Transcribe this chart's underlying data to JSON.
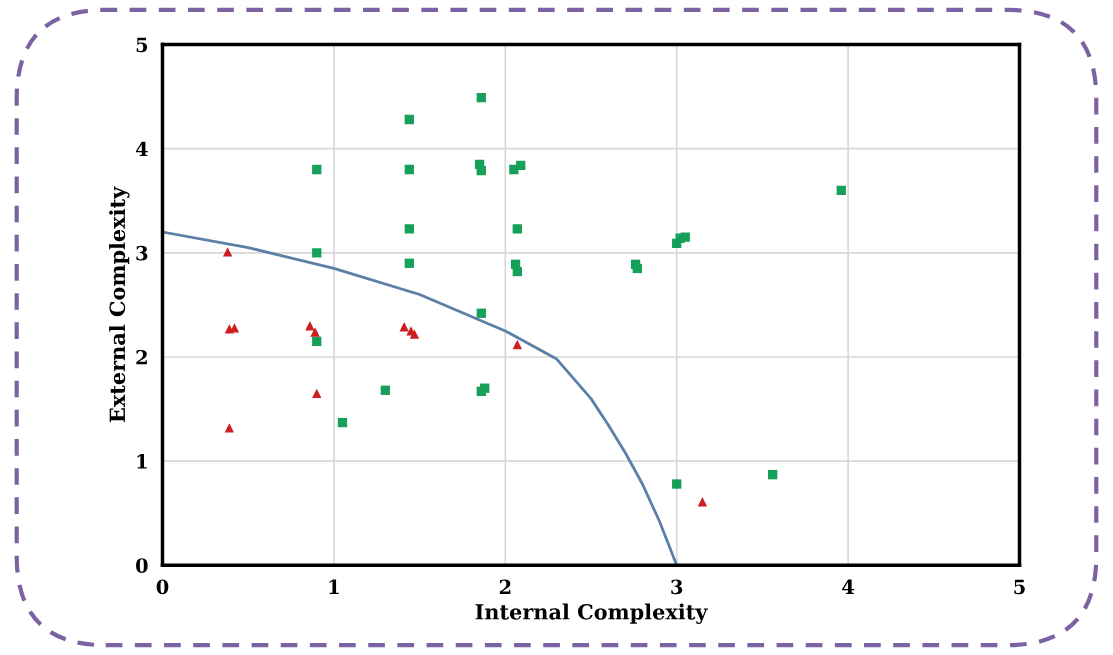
{
  "chart_data": {
    "type": "scatter",
    "xlabel": "Internal Complexity",
    "ylabel": "External Complexity",
    "xlim": [
      0,
      5
    ],
    "ylim": [
      0,
      5
    ],
    "xticks": [
      0,
      1,
      2,
      3,
      4,
      5
    ],
    "yticks": [
      0,
      1,
      2,
      3,
      4,
      5
    ],
    "grid": true,
    "series": [
      {
        "marker": "square",
        "color": "#16a05a",
        "x": [
          1.86,
          1.44,
          0.9,
          1.44,
          1.85,
          1.86,
          2.05,
          2.09,
          1.44,
          2.07,
          0.9,
          1.44,
          2.06,
          2.07,
          2.76,
          2.77,
          3.0,
          3.02,
          3.05,
          3.96,
          1.86,
          0.9,
          1.3,
          1.88,
          1.86,
          1.05,
          3.0,
          3.56
        ],
        "values": [
          4.49,
          4.28,
          3.8,
          3.8,
          3.85,
          3.79,
          3.8,
          3.84,
          3.23,
          3.23,
          3.0,
          2.9,
          2.89,
          2.82,
          2.89,
          2.85,
          3.09,
          3.14,
          3.15,
          3.6,
          2.42,
          2.15,
          1.68,
          1.7,
          1.67,
          1.37,
          0.78,
          0.87
        ]
      },
      {
        "marker": "triangle",
        "color": "#cc1f1f",
        "x": [
          0.38,
          0.39,
          0.42,
          0.86,
          0.89,
          1.41,
          1.45,
          1.47,
          2.07,
          0.9,
          0.39,
          3.15
        ],
        "values": [
          3.01,
          2.27,
          2.28,
          2.3,
          2.24,
          2.29,
          2.25,
          2.22,
          2.12,
          1.65,
          1.32,
          0.61
        ]
      },
      {
        "type": "line",
        "marker": "none",
        "line_style": "solid",
        "color": "#5b7fa6",
        "x": [
          0,
          0.5,
          1,
          1.5,
          2,
          2.3,
          2.5,
          2.6,
          2.7,
          2.8,
          2.9,
          3
        ],
        "values": [
          3.2,
          3.05,
          2.85,
          2.6,
          2.25,
          1.98,
          1.6,
          1.35,
          1.08,
          0.78,
          0.42,
          0
        ]
      }
    ]
  }
}
